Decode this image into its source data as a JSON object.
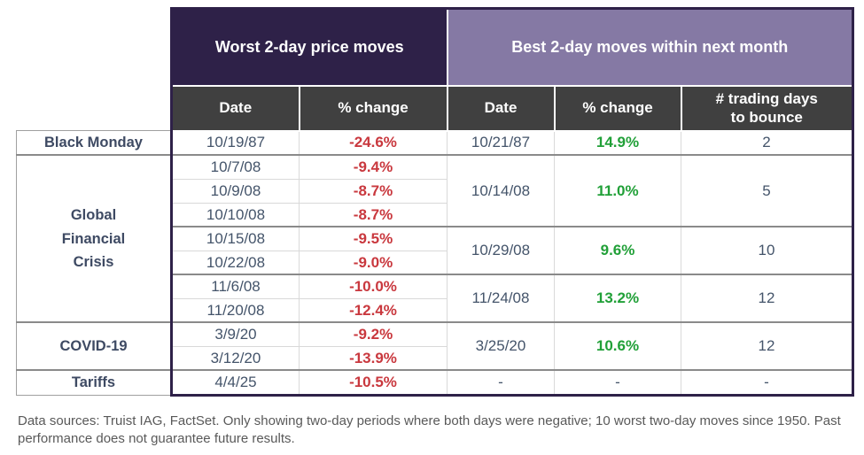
{
  "chart_data": {
    "type": "table",
    "column_groups": {
      "worst": "Worst 2-day price moves",
      "best": "Best 2-day moves within next month"
    },
    "columns": {
      "date": "Date",
      "pct": "% change",
      "days": "# trading days to bounce"
    },
    "rows": [
      {
        "label": "Black Monday",
        "worst_date": "10/19/87",
        "worst_pct": "-24.6%",
        "best_date": "10/21/87",
        "best_pct": "14.9%",
        "best_days": "2"
      },
      {
        "label": "Global Financial Crisis",
        "worst_date": "10/7/08",
        "worst_pct": "-9.4%",
        "best_date": "10/14/08",
        "best_pct": "11.0%",
        "best_days": "5"
      },
      {
        "worst_date": "10/9/08",
        "worst_pct": "-8.7%"
      },
      {
        "worst_date": "10/10/08",
        "worst_pct": "-8.7%"
      },
      {
        "worst_date": "10/15/08",
        "worst_pct": "-9.5%",
        "best_date": "10/29/08",
        "best_pct": "9.6%",
        "best_days": "10"
      },
      {
        "worst_date": "10/22/08",
        "worst_pct": "-9.0%"
      },
      {
        "worst_date": "11/6/08",
        "worst_pct": "-10.0%",
        "best_date": "11/24/08",
        "best_pct": "13.2%",
        "best_days": "12"
      },
      {
        "worst_date": "11/20/08",
        "worst_pct": "-12.4%"
      },
      {
        "label": "COVID-19",
        "worst_date": "3/9/20",
        "worst_pct": "-9.2%",
        "best_date": "3/25/20",
        "best_pct": "10.6%",
        "best_days": "12"
      },
      {
        "worst_date": "3/12/20",
        "worst_pct": "-13.9%"
      },
      {
        "label": "Tariffs",
        "worst_date": "4/4/25",
        "worst_pct": "-10.5%",
        "best_date": "-",
        "best_pct": "-",
        "best_days": "-"
      }
    ],
    "footnote": "Data sources: Truist IAG, FactSet. Only showing two-day periods where both days were negative; 10 worst two-day moves since 1950. Past performance does not guarantee future results.",
    "colors": {
      "worst_header_bg": "#2E2148",
      "best_header_bg": "#8579A4",
      "subheader_bg": "#404040",
      "frame_border": "#2E2148",
      "negative_value": "#C9383E",
      "positive_value": "#21A038",
      "value_text": "#44546A"
    }
  }
}
